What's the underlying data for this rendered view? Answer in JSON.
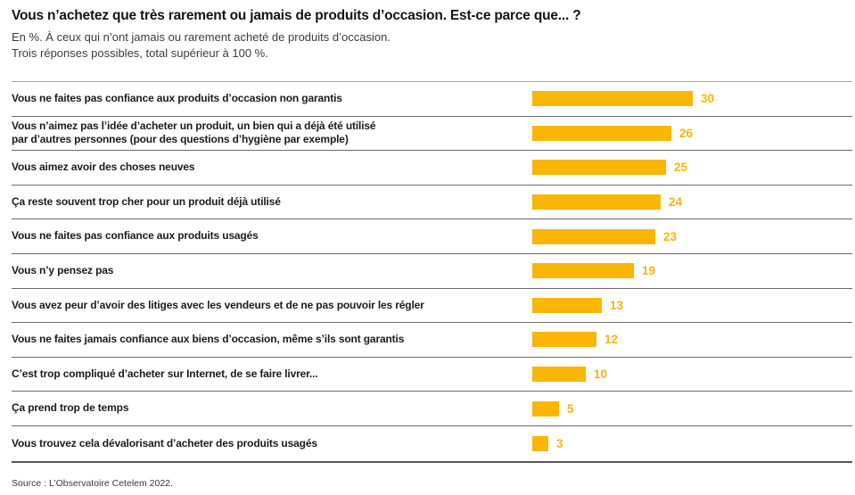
{
  "header": {
    "title": "Vous n’achetez que très rarement ou jamais de produits d’occasion. Est-ce parce que... ?",
    "subtitle_line1": "En %. À ceux qui n’ont jamais ou rarement acheté de produits d’occasion.",
    "subtitle_line2": "Trois réponses possibles, total supérieur à 100 %."
  },
  "chart_data": {
    "type": "bar",
    "orientation": "horizontal",
    "unit": "%",
    "title": "Vous n’achetez que très rarement ou jamais de produits d’occasion. Est-ce parce que... ?",
    "categories": [
      "Vous ne faites pas confiance aux produits d’occasion non garantis",
      "Vous n’aimez pas l’idée d’acheter un produit, un bien qui a déjà été utilisé\npar d’autres personnes (pour des questions d’hygiène par exemple)",
      "Vous aimez avoir des choses neuves",
      "Ça reste souvent trop cher pour un produit déjà utilisé",
      "Vous ne faites pas confiance aux produits usagés",
      "Vous n’y pensez pas",
      "Vous avez peur d’avoir des litiges avec les vendeurs et de ne pas pouvoir les régler",
      "Vous ne faites jamais confiance aux biens d’occasion, même s’ils sont garantis",
      "C’est trop compliqué d’acheter sur Internet, de se faire livrer...",
      "Ça prend trop de temps",
      "Vous trouvez cela dévalorisant d’acheter des produits usagés"
    ],
    "values": [
      30,
      26,
      25,
      24,
      23,
      19,
      13,
      12,
      10,
      5,
      3
    ],
    "xlim": [
      0,
      30
    ],
    "xlabel": "",
    "ylabel": "",
    "grid": false,
    "legend": false,
    "bar_color": "#f9b605",
    "value_label_color": "#f9b605",
    "value_labels_shown": true
  },
  "footer": {
    "source": "Source : L’Observatoire Cetelem 2022."
  }
}
